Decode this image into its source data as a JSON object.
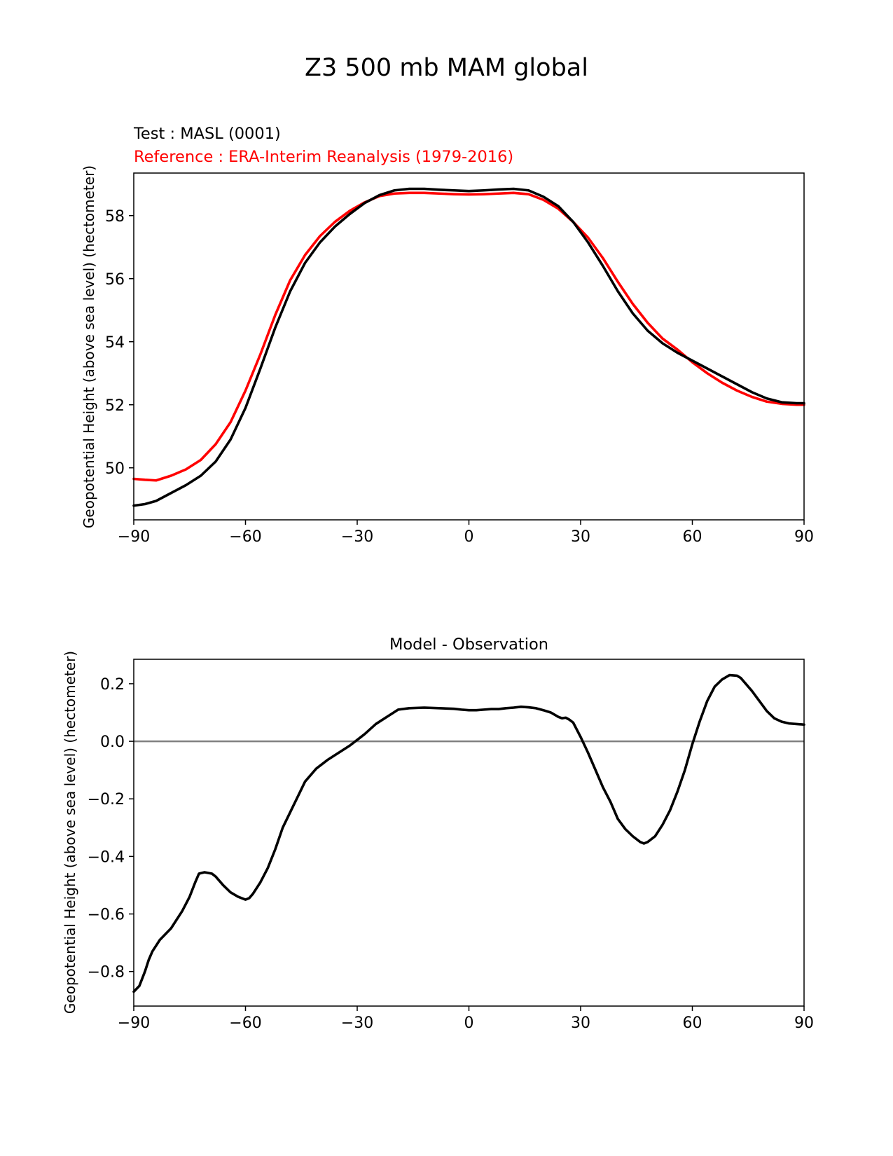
{
  "figure": {
    "title": "Z3 500 mb MAM global"
  },
  "chart_data": [
    {
      "type": "line",
      "test_label": "Test : MASL (0001)",
      "reference_label": "Reference : ERA-Interim Reanalysis (1979-2016)",
      "title": "",
      "xlabel": "",
      "ylabel": "Geopotential Height (above sea level) (hectometer)",
      "xlim": [
        -90,
        90
      ],
      "ylim": [
        48.35,
        59.35
      ],
      "xticks": [
        -90,
        -60,
        -30,
        0,
        30,
        60,
        90
      ],
      "xtick_labels": [
        "−90",
        "−60",
        "−30",
        "0",
        "30",
        "60",
        "90"
      ],
      "yticks": [
        50,
        52,
        54,
        56,
        58
      ],
      "ytick_labels": [
        "50",
        "52",
        "54",
        "56",
        "58"
      ],
      "grid": false,
      "series": [
        {
          "name": "Test : MASL (0001)",
          "color": "#000000",
          "x": [
            -90,
            -87,
            -84,
            -80,
            -76,
            -72,
            -68,
            -64,
            -60,
            -56,
            -52,
            -48,
            -44,
            -40,
            -36,
            -32,
            -28,
            -24,
            -20,
            -16,
            -12,
            -8,
            -4,
            0,
            4,
            8,
            12,
            16,
            20,
            24,
            28,
            32,
            36,
            40,
            44,
            48,
            52,
            56,
            60,
            64,
            68,
            72,
            76,
            80,
            84,
            88,
            90
          ],
          "y": [
            48.8,
            48.85,
            48.95,
            49.2,
            49.45,
            49.75,
            50.2,
            50.9,
            51.9,
            53.15,
            54.45,
            55.6,
            56.5,
            57.15,
            57.65,
            58.05,
            58.4,
            58.65,
            58.8,
            58.85,
            58.85,
            58.82,
            58.8,
            58.78,
            58.8,
            58.83,
            58.85,
            58.8,
            58.6,
            58.3,
            57.8,
            57.15,
            56.4,
            55.6,
            54.9,
            54.35,
            53.95,
            53.65,
            53.4,
            53.15,
            52.9,
            52.65,
            52.4,
            52.2,
            52.08,
            52.05,
            52.05
          ]
        },
        {
          "name": "Reference : ERA-Interim Reanalysis (1979-2016)",
          "color": "#ff0000",
          "x": [
            -90,
            -87,
            -84,
            -80,
            -76,
            -72,
            -68,
            -64,
            -60,
            -56,
            -52,
            -48,
            -44,
            -40,
            -36,
            -32,
            -28,
            -24,
            -20,
            -16,
            -12,
            -8,
            -4,
            0,
            4,
            8,
            12,
            16,
            20,
            24,
            28,
            32,
            36,
            40,
            44,
            48,
            52,
            56,
            60,
            64,
            68,
            72,
            76,
            80,
            84,
            88,
            90
          ],
          "y": [
            49.65,
            49.62,
            49.6,
            49.75,
            49.95,
            50.25,
            50.75,
            51.45,
            52.45,
            53.6,
            54.85,
            55.95,
            56.75,
            57.35,
            57.8,
            58.15,
            58.42,
            58.62,
            58.7,
            58.72,
            58.72,
            58.7,
            58.68,
            58.67,
            58.68,
            58.7,
            58.72,
            58.68,
            58.5,
            58.22,
            57.8,
            57.3,
            56.65,
            55.9,
            55.2,
            54.6,
            54.1,
            53.75,
            53.35,
            53.0,
            52.7,
            52.45,
            52.25,
            52.1,
            52.03,
            52.0,
            52.0
          ]
        }
      ]
    },
    {
      "type": "line",
      "title": "Model - Observation",
      "xlabel": "",
      "ylabel": "Geopotential Height (above sea level) (hectometer)",
      "xlim": [
        -90,
        90
      ],
      "ylim": [
        -0.92,
        0.285
      ],
      "xticks": [
        -90,
        -60,
        -30,
        0,
        30,
        60,
        90
      ],
      "xtick_labels": [
        "−90",
        "−60",
        "−30",
        "0",
        "30",
        "60",
        "90"
      ],
      "yticks": [
        0.2,
        0.0,
        -0.2,
        -0.4,
        -0.6,
        -0.8
      ],
      "ytick_labels": [
        "0.2",
        "0.0",
        "−0.2",
        "−0.4",
        "−0.6",
        "−0.8"
      ],
      "grid": false,
      "zero_line_color": "#808080",
      "series": [
        {
          "color": "#000000",
          "x": [
            -90,
            -88.5,
            -87,
            -86,
            -85,
            -83,
            -80,
            -77,
            -75,
            -73.5,
            -72.5,
            -71,
            -69,
            -68,
            -66,
            -64,
            -62,
            -60,
            -59,
            -58,
            -56,
            -54,
            -52,
            -50,
            -47,
            -44,
            -41,
            -38,
            -35,
            -32,
            -30,
            -28,
            -25,
            -22,
            -19,
            -16,
            -12,
            -8,
            -4,
            -2,
            0,
            2,
            4,
            6,
            8,
            10,
            12,
            14,
            16,
            18,
            20,
            22,
            24,
            25,
            26,
            27,
            28,
            30,
            32,
            34,
            36,
            38,
            40,
            42,
            44,
            46,
            47,
            48,
            50,
            52,
            54,
            56,
            58,
            60,
            62,
            64,
            66,
            68,
            70,
            72,
            73,
            74,
            76,
            78,
            80,
            82,
            84,
            86,
            88,
            90
          ],
          "y": [
            -0.87,
            -0.85,
            -0.8,
            -0.76,
            -0.73,
            -0.69,
            -0.65,
            -0.59,
            -0.54,
            -0.49,
            -0.46,
            -0.455,
            -0.46,
            -0.47,
            -0.5,
            -0.525,
            -0.54,
            -0.55,
            -0.545,
            -0.53,
            -0.49,
            -0.44,
            -0.375,
            -0.3,
            -0.22,
            -0.14,
            -0.095,
            -0.065,
            -0.04,
            -0.015,
            0.005,
            0.025,
            0.06,
            0.085,
            0.11,
            0.115,
            0.117,
            0.115,
            0.113,
            0.11,
            0.108,
            0.108,
            0.11,
            0.112,
            0.112,
            0.115,
            0.117,
            0.12,
            0.118,
            0.115,
            0.108,
            0.1,
            0.085,
            0.08,
            0.082,
            0.075,
            0.065,
            0.015,
            -0.04,
            -0.1,
            -0.16,
            -0.21,
            -0.27,
            -0.305,
            -0.33,
            -0.35,
            -0.355,
            -0.35,
            -0.33,
            -0.29,
            -0.24,
            -0.175,
            -0.1,
            -0.01,
            0.07,
            0.14,
            0.19,
            0.215,
            0.23,
            0.228,
            0.22,
            0.205,
            0.175,
            0.14,
            0.105,
            0.08,
            0.068,
            0.062,
            0.06,
            0.058
          ]
        }
      ]
    }
  ]
}
